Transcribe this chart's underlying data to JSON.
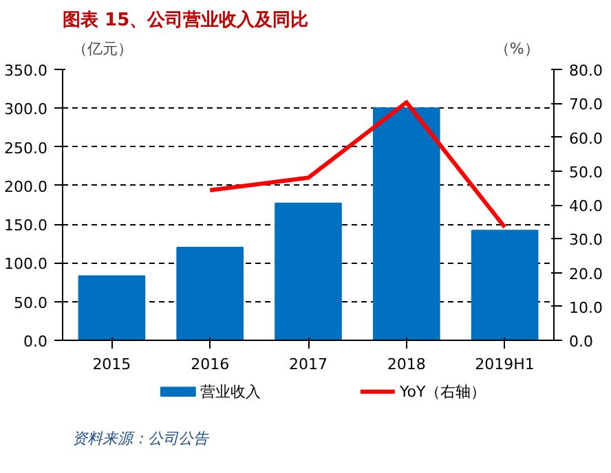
{
  "chart_data": {
    "type": "bar",
    "title": "图表 15、公司营业收入及同比",
    "ylabel": "（亿元）",
    "y2label": "（%）",
    "categories": [
      "2015",
      "2016",
      "2017",
      "2018",
      "2019H1"
    ],
    "series": [
      {
        "name": "营业收入",
        "color": "#0070c0",
        "values": [
          83,
          120,
          177,
          300,
          142
        ]
      },
      {
        "name": "YoY（右轴）",
        "type": "line",
        "axis": "y2",
        "color": "#ff0000",
        "values": [
          null,
          44.3,
          48,
          70.3,
          33.4
        ]
      }
    ],
    "ylim": [
      0,
      350
    ],
    "yticks": [
      {
        "value": 0,
        "label": "0.0"
      },
      {
        "value": 50,
        "label": "50.0"
      },
      {
        "value": 100,
        "label": "100.0"
      },
      {
        "value": 150,
        "label": "150.0"
      },
      {
        "value": 200,
        "label": "200.0"
      },
      {
        "value": 250,
        "label": "250.0"
      },
      {
        "value": 300,
        "label": "300.0"
      },
      {
        "value": 350,
        "label": "350.0"
      }
    ],
    "y2lim": [
      0,
      80
    ],
    "y2ticks": [
      {
        "value": 0,
        "label": "0.0"
      },
      {
        "value": 10,
        "label": "10.0"
      },
      {
        "value": 20,
        "label": "20.0"
      },
      {
        "value": 30,
        "label": "30.0"
      },
      {
        "value": 40,
        "label": "40.0"
      },
      {
        "value": 50,
        "label": "50.0"
      },
      {
        "value": 60,
        "label": "60.0"
      },
      {
        "value": 70,
        "label": "70.0"
      },
      {
        "value": 80,
        "label": "80.0"
      }
    ],
    "grid": "y",
    "legend": "bottom",
    "annotations": [
      "资料来源：公司公告"
    ]
  }
}
